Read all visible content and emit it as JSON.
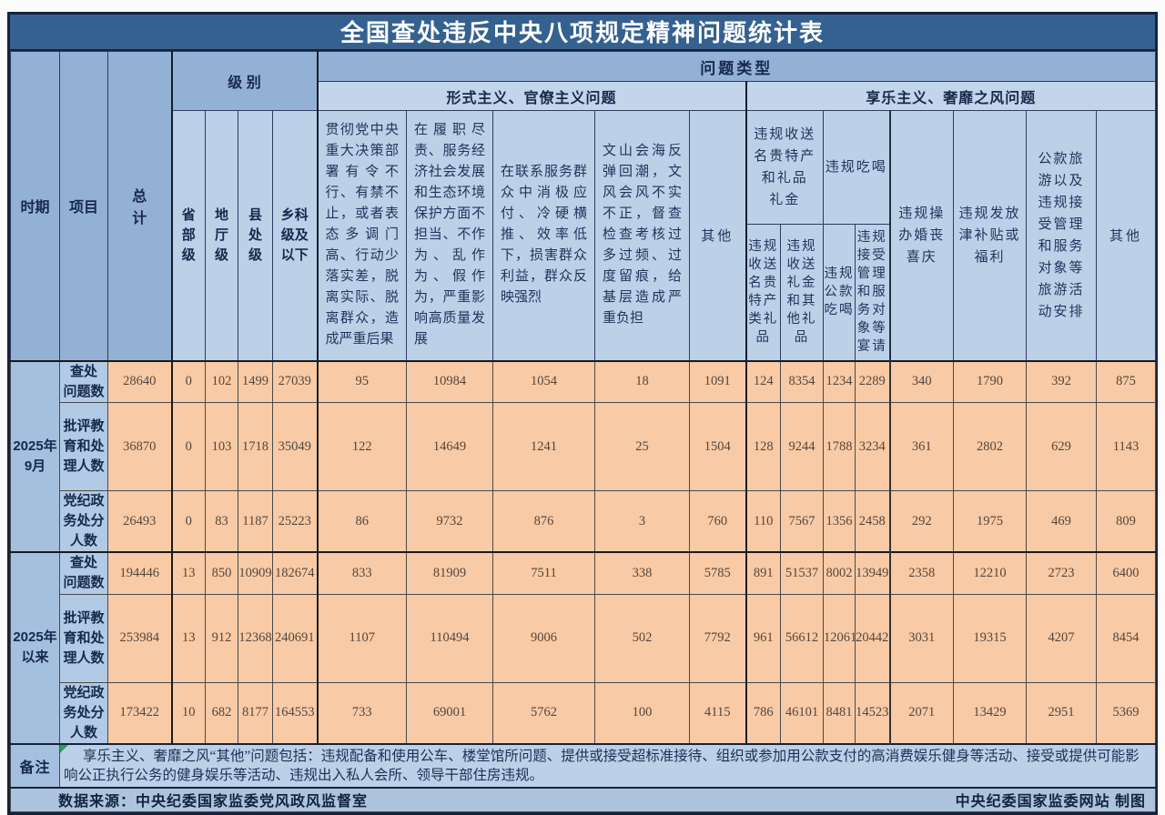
{
  "title": "全国查处违反中央八项规定精神问题统计表",
  "header": {
    "period": "时期",
    "item": "项目",
    "total": "总\n计",
    "level_group": "级 别",
    "problem_type": "问题类型",
    "formalism_group": "形式主义、官僚主义问题",
    "hedonism_group": "享乐主义、奢靡之风问题",
    "levels": [
      "省\n部\n级",
      "地\n厅\n级",
      "县\n处\n级",
      "乡科\n级及\n以下"
    ],
    "formalism_cols": [
      "贯彻党中央重大决策部署有令不行、有禁不止，或者表态多调门高、行动少落实差，脱离实际、脱离群众，造成严重后果",
      "在履职尽责、服务经济社会发展和生态环境保护方面不担当、不作为、乱作为、假作为，严重影响高质量发展",
      "在联系服务群众中消极应付、冷硬横推、效率低下，损害群众利益，群众反映强烈",
      "文山会海反弹回潮，文风会风不实不正，督查检查考核过多过频、过度留痕，给基层造成严重负担",
      "其他"
    ],
    "gifts_group": "违规收送\n名贵特产\n和礼品\n礼金",
    "dining_group": "违规吃喝",
    "sub_cols": [
      "违规\n收送\n名贵\n特产\n类礼\n品",
      "违规\n收送\n礼金\n和其\n他礼\n品",
      "违规\n公款\n吃喝",
      "违规\n接受\n管理\n和服\n务对\n象等\n宴请"
    ],
    "single_cols": [
      "违规操\n办婚丧\n喜庆",
      "违规发放\n津补贴或\n福利",
      "公款旅\n游以及\n违规接\n受管理\n和服务\n对象等\n旅游活\n动安排",
      "其他"
    ]
  },
  "table": {
    "periods": [
      {
        "label": "2025年\n9月",
        "rows": [
          {
            "item": "查处\n问题数",
            "values": [
              "28640",
              "0",
              "102",
              "1499",
              "27039",
              "95",
              "10984",
              "1054",
              "18",
              "1091",
              "124",
              "8354",
              "1234",
              "2289",
              "340",
              "1790",
              "392",
              "875"
            ]
          },
          {
            "item": "批评教\n育和处\n理人数",
            "values": [
              "36870",
              "0",
              "103",
              "1718",
              "35049",
              "122",
              "14649",
              "1241",
              "25",
              "1504",
              "128",
              "9244",
              "1788",
              "3234",
              "361",
              "2802",
              "629",
              "1143"
            ]
          },
          {
            "item": "党纪政\n务处分\n人数",
            "values": [
              "26493",
              "0",
              "83",
              "1187",
              "25223",
              "86",
              "9732",
              "876",
              "3",
              "760",
              "110",
              "7567",
              "1356",
              "2458",
              "292",
              "1975",
              "469",
              "809"
            ]
          }
        ]
      },
      {
        "label": "2025年\n以来",
        "rows": [
          {
            "item": "查处\n问题数",
            "values": [
              "194446",
              "13",
              "850",
              "10909",
              "182674",
              "833",
              "81909",
              "7511",
              "338",
              "5785",
              "891",
              "51537",
              "8002",
              "13949",
              "2358",
              "12210",
              "2723",
              "6400"
            ]
          },
          {
            "item": "批评教\n育和处\n理人数",
            "values": [
              "253984",
              "13",
              "912",
              "12368",
              "240691",
              "1107",
              "110494",
              "9006",
              "502",
              "7792",
              "961",
              "56612",
              "12061",
              "20442",
              "3031",
              "19315",
              "4207",
              "8454"
            ]
          },
          {
            "item": "党纪政\n务处分\n人数",
            "values": [
              "173422",
              "10",
              "682",
              "8177",
              "164553",
              "733",
              "69001",
              "5762",
              "100",
              "4115",
              "786",
              "46101",
              "8481",
              "14523",
              "2071",
              "13429",
              "2951",
              "5369"
            ]
          }
        ]
      }
    ]
  },
  "note": {
    "label": "备注",
    "text": "享乐主义、奢靡之风“其他”问题包括：违规配备和使用公车、楼堂馆所问题、提供或接受超标准接待、组织或参加用公款支付的高消费娱乐健身等活动、接受或提供可能影响公正执行公务的健身娱乐等活动、违规出入私人会所、领导干部住房违规。"
  },
  "footer": {
    "source": "数据来源：中央纪委国家监委党风政风监督室",
    "credit": "中央纪委国家监委网站 制图"
  },
  "chart_data": {
    "type": "table",
    "title": "全国查处违反中央八项规定精神问题统计表",
    "columns": [
      "总计",
      "省部级",
      "地厅级",
      "县处级",
      "乡科级及以下",
      "贯彻党中央重大决策部署问题",
      "履职尽责服务发展不担当不作为乱作为假作为",
      "联系服务群众中消极应付冷硬横推效率低下",
      "文山会海反弹回潮督查检查考核过多过频",
      "形式主义官僚主义其他",
      "违规收送名贵特产类礼品",
      "违规收送礼金和其他礼品",
      "违规公款吃喝",
      "违规接受管理和服务对象等宴请",
      "违规操办婚丧喜庆",
      "违规发放津补贴或福利",
      "公款旅游以及违规接受管理和服务对象等旅游活动安排",
      "享乐主义奢靡之风其他"
    ],
    "rows": [
      {
        "period": "2025年9月",
        "item": "查处问题数",
        "values": [
          28640,
          0,
          102,
          1499,
          27039,
          95,
          10984,
          1054,
          18,
          1091,
          124,
          8354,
          1234,
          2289,
          340,
          1790,
          392,
          875
        ]
      },
      {
        "period": "2025年9月",
        "item": "批评教育和处理人数",
        "values": [
          36870,
          0,
          103,
          1718,
          35049,
          122,
          14649,
          1241,
          25,
          1504,
          128,
          9244,
          1788,
          3234,
          361,
          2802,
          629,
          1143
        ]
      },
      {
        "period": "2025年9月",
        "item": "党纪政务处分人数",
        "values": [
          26493,
          0,
          83,
          1187,
          25223,
          86,
          9732,
          876,
          3,
          760,
          110,
          7567,
          1356,
          2458,
          292,
          1975,
          469,
          809
        ]
      },
      {
        "period": "2025年以来",
        "item": "查处问题数",
        "values": [
          194446,
          13,
          850,
          10909,
          182674,
          833,
          81909,
          7511,
          338,
          5785,
          891,
          51537,
          8002,
          13949,
          2358,
          12210,
          2723,
          6400
        ]
      },
      {
        "period": "2025年以来",
        "item": "批评教育和处理人数",
        "values": [
          253984,
          13,
          912,
          12368,
          240691,
          1107,
          110494,
          9006,
          502,
          7792,
          961,
          56612,
          12061,
          20442,
          3031,
          19315,
          4207,
          8454
        ]
      },
      {
        "period": "2025年以来",
        "item": "党纪政务处分人数",
        "values": [
          173422,
          10,
          682,
          8177,
          164553,
          733,
          69001,
          5762,
          100,
          4115,
          786,
          46101,
          8481,
          14523,
          2071,
          13429,
          2951,
          5369
        ]
      }
    ]
  }
}
